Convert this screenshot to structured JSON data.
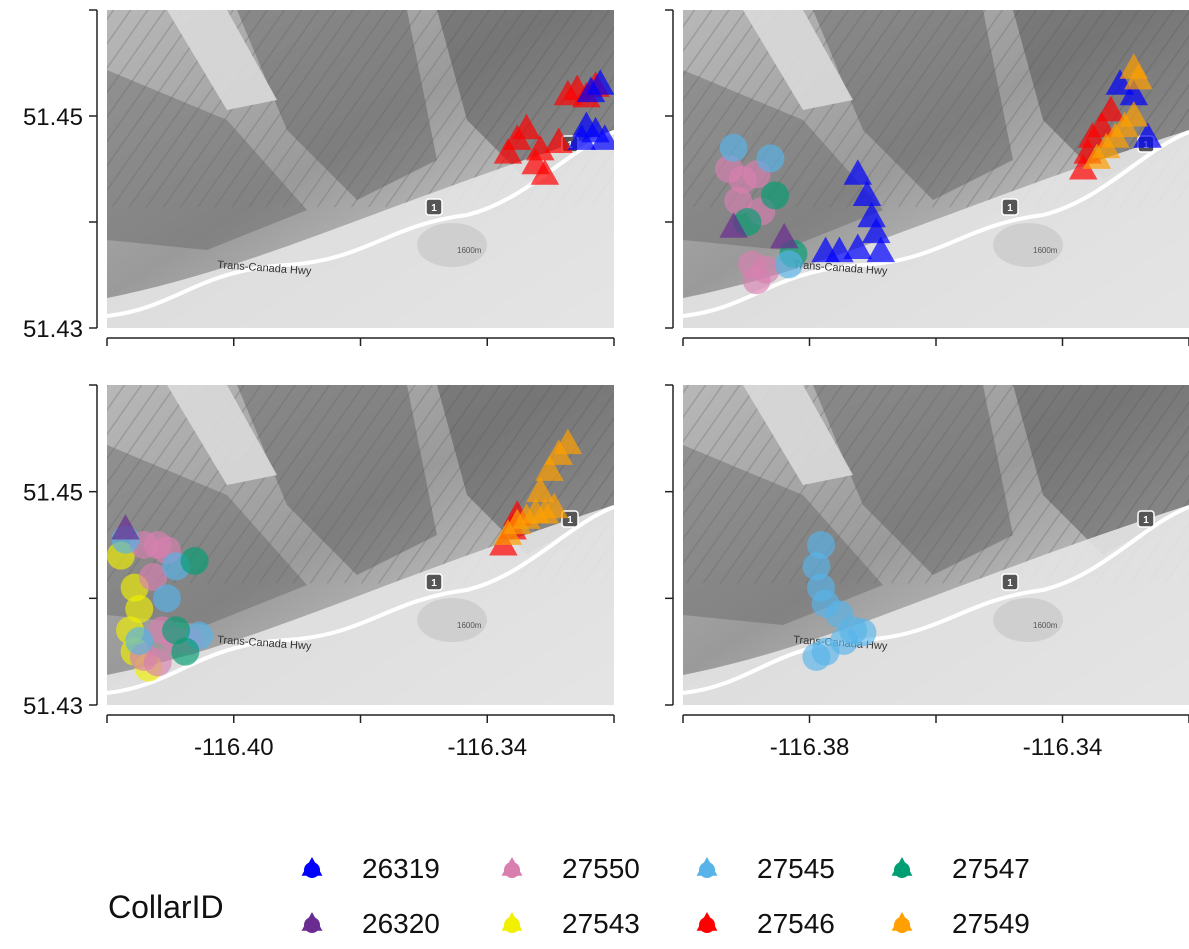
{
  "legend": {
    "title": "CollarID",
    "entries": [
      {
        "id": "26319",
        "color": "#0000ff"
      },
      {
        "id": "27550",
        "color": "#d97fb0"
      },
      {
        "id": "27545",
        "color": "#56b4e9"
      },
      {
        "id": "27547",
        "color": "#009e73"
      },
      {
        "id": "26320",
        "color": "#6a2c91"
      },
      {
        "id": "27543",
        "color": "#f0f000"
      },
      {
        "id": "27546",
        "color": "#ff0000"
      },
      {
        "id": "27549",
        "color": "#ffa000"
      }
    ]
  },
  "map": {
    "road_label": "Trans-Canada Hwy",
    "shield_label": "1",
    "contour_label": "1600m",
    "road_color": "#ffffff",
    "terrain_base": "#c8c8c8"
  },
  "chart_data": {
    "type": "scatter",
    "facets": 4,
    "ylim": [
      51.43,
      51.46
    ],
    "xlim_left_col": [
      -116.42,
      -116.31
    ],
    "xlim_right_col": [
      -116.42,
      -116.31
    ],
    "y_ticks": [
      "51.43",
      "51.45"
    ],
    "x_ticks_left_col": [
      "-116.40",
      "-116.34"
    ],
    "x_ticks_right_col": [
      "-116.38",
      "-116.34"
    ],
    "panels": [
      {
        "series": [
          {
            "collar": "27546",
            "shape": "triangle",
            "color": "#ff0000",
            "points": [
              [
                -116.333,
                51.4465
              ],
              [
                -116.331,
                51.4478
              ],
              [
                -116.329,
                51.4488
              ],
              [
                -116.327,
                51.4455
              ],
              [
                -116.326,
                51.4468
              ],
              [
                -116.325,
                51.4445
              ],
              [
                -116.322,
                51.4475
              ],
              [
                -116.32,
                51.452
              ],
              [
                -116.318,
                51.4525
              ],
              [
                -116.316,
                51.4518
              ],
              [
                -116.314,
                51.4528
              ]
            ]
          },
          {
            "collar": "26319",
            "shape": "triangle",
            "color": "#0000ff",
            "points": [
              [
                -116.317,
                51.4478
              ],
              [
                -116.316,
                51.449
              ],
              [
                -116.314,
                51.4485
              ],
              [
                -116.312,
                51.4478
              ],
              [
                -116.315,
                51.4523
              ],
              [
                -116.313,
                51.453
              ]
            ]
          }
        ]
      },
      {
        "series": [
          {
            "collar": "27550",
            "shape": "circle",
            "color": "#d97fb0",
            "points": [
              [
                -116.41,
                51.445
              ],
              [
                -116.407,
                51.444
              ],
              [
                -116.404,
                51.4445
              ],
              [
                -116.408,
                51.442
              ],
              [
                -116.403,
                51.441
              ],
              [
                -116.405,
                51.436
              ],
              [
                -116.402,
                51.4355
              ],
              [
                -116.404,
                51.4345
              ]
            ]
          },
          {
            "collar": "27547",
            "shape": "circle",
            "color": "#009e73",
            "points": [
              [
                -116.406,
                51.44
              ],
              [
                -116.4,
                51.4425
              ],
              [
                -116.396,
                51.437
              ]
            ]
          },
          {
            "collar": "27545",
            "shape": "circle",
            "color": "#56b4e9",
            "points": [
              [
                -116.409,
                51.447
              ],
              [
                -116.401,
                51.446
              ],
              [
                -116.397,
                51.436
              ]
            ]
          },
          {
            "collar": "26320",
            "shape": "triangle",
            "color": "#6a2c91",
            "points": [
              [
                -116.409,
                51.4395
              ],
              [
                -116.398,
                51.4385
              ]
            ]
          },
          {
            "collar": "26319",
            "shape": "triangle",
            "color": "#0000ff",
            "points": [
              [
                -116.382,
                51.4445
              ],
              [
                -116.38,
                51.4425
              ],
              [
                -116.379,
                51.4405
              ],
              [
                -116.378,
                51.439
              ],
              [
                -116.382,
                51.4375
              ],
              [
                -116.386,
                51.4372
              ],
              [
                -116.389,
                51.4372
              ],
              [
                -116.377,
                51.4372
              ],
              [
                -116.325,
                51.453
              ],
              [
                -116.322,
                51.452
              ],
              [
                -116.319,
                51.448
              ]
            ]
          },
          {
            "collar": "27546",
            "shape": "triangle",
            "color": "#ff0000",
            "points": [
              [
                -116.333,
                51.445
              ],
              [
                -116.332,
                51.4465
              ],
              [
                -116.331,
                51.448
              ],
              [
                -116.329,
                51.449
              ],
              [
                -116.327,
                51.4505
              ]
            ]
          },
          {
            "collar": "27549",
            "shape": "triangle",
            "color": "#ffa000",
            "points": [
              [
                -116.33,
                51.446
              ],
              [
                -116.328,
                51.447
              ],
              [
                -116.326,
                51.448
              ],
              [
                -116.324,
                51.449
              ],
              [
                -116.322,
                51.45
              ],
              [
                -116.321,
                51.4535
              ],
              [
                -116.322,
                51.4545
              ]
            ]
          }
        ]
      },
      {
        "series": [
          {
            "collar": "27543",
            "shape": "circle",
            "color": "#f0f000",
            "points": [
              [
                -116.417,
                51.444
              ],
              [
                -116.414,
                51.441
              ],
              [
                -116.413,
                51.439
              ],
              [
                -116.415,
                51.437
              ],
              [
                -116.414,
                51.435
              ],
              [
                -116.411,
                51.4335
              ]
            ]
          },
          {
            "collar": "27550",
            "shape": "circle",
            "color": "#d97fb0",
            "points": [
              [
                -116.412,
                51.445
              ],
              [
                -116.409,
                51.445
              ],
              [
                -116.407,
                51.4445
              ],
              [
                -116.41,
                51.442
              ],
              [
                -116.408,
                51.437
              ],
              [
                -116.405,
                51.436
              ],
              [
                -116.402,
                51.436
              ],
              [
                -116.412,
                51.4345
              ],
              [
                -116.409,
                51.434
              ]
            ]
          },
          {
            "collar": "27545",
            "shape": "circle",
            "color": "#56b4e9",
            "points": [
              [
                -116.416,
                51.4455
              ],
              [
                -116.405,
                51.443
              ],
              [
                -116.407,
                51.44
              ],
              [
                -116.413,
                51.436
              ],
              [
                -116.4,
                51.4365
              ]
            ]
          },
          {
            "collar": "27547",
            "shape": "circle",
            "color": "#009e73",
            "points": [
              [
                -116.401,
                51.4435
              ],
              [
                -116.405,
                51.437
              ],
              [
                -116.403,
                51.435
              ]
            ]
          },
          {
            "collar": "26320",
            "shape": "triangle",
            "color": "#6a2c91",
            "points": [
              [
                -116.416,
                51.4465
              ]
            ]
          },
          {
            "collar": "27546",
            "shape": "triangle",
            "color": "#ff0000",
            "points": [
              [
                -116.334,
                51.445
              ],
              [
                -116.332,
                51.4465
              ],
              [
                -116.331,
                51.4478
              ]
            ]
          },
          {
            "collar": "27549",
            "shape": "triangle",
            "color": "#ffa000",
            "points": [
              [
                -116.333,
                51.446
              ],
              [
                -116.331,
                51.447
              ],
              [
                -116.329,
                51.4475
              ],
              [
                -116.327,
                51.448
              ],
              [
                -116.325,
                51.448
              ],
              [
                -116.323,
                51.4485
              ],
              [
                -116.326,
                51.45
              ],
              [
                -116.324,
                51.452
              ],
              [
                -116.322,
                51.4535
              ],
              [
                -116.32,
                51.4545
              ]
            ]
          }
        ]
      },
      {
        "series": [
          {
            "collar": "27545",
            "shape": "circle",
            "color": "#56b4e9",
            "points": [
              [
                -116.39,
                51.445
              ],
              [
                -116.391,
                51.443
              ],
              [
                -116.39,
                51.441
              ],
              [
                -116.389,
                51.4395
              ],
              [
                -116.386,
                51.4385
              ],
              [
                -116.383,
                51.437
              ],
              [
                -116.381,
                51.4368
              ],
              [
                -116.385,
                51.436
              ],
              [
                -116.389,
                51.435
              ],
              [
                -116.391,
                51.4345
              ]
            ]
          }
        ]
      }
    ]
  }
}
